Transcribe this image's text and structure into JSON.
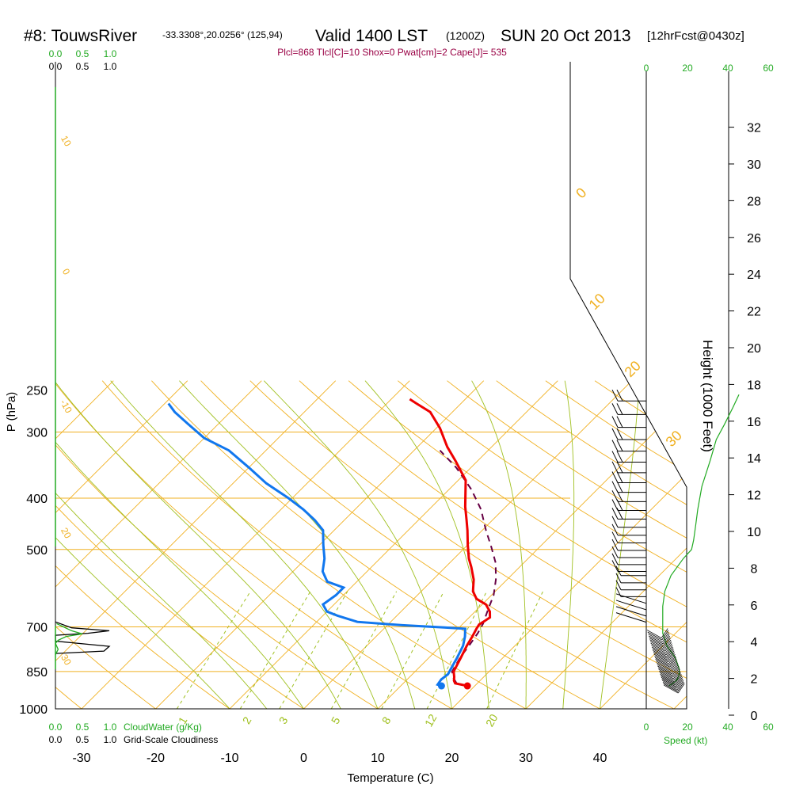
{
  "header": {
    "station": "#8: TouwsRiver",
    "coords": "-33.3308°,20.0256° (125,94)",
    "valid": "Valid 1400 LST",
    "zulu": "(1200Z)",
    "date": "SUN 20 Oct 2013",
    "forecast": "[12hrFcst@0430z]",
    "params": "Plcl=868 Tlcl[C]=10 Shox=0 Pwat[cm]=2 Cape[J]= 535"
  },
  "labels": {
    "xlabel": "Temperature (C)",
    "ylabel": "P (hPa)",
    "height_label": "Height (1000 Feet)",
    "cloudwater_label": "CloudWater (g/Kg)",
    "cloudiness_label": "Grid-Scale Cloudiness",
    "speed_label": "Speed (kt)"
  },
  "colors": {
    "isobar": "#f0b020",
    "dry_adiabat": "#f0b020",
    "moist_adiabat": "#a0c020",
    "mixing_ratio": "#a0c020",
    "temperature": "#ee0000",
    "dewpoint": "#1177ee",
    "parcel": "#660044",
    "cloudwater": "#22aa22",
    "cloudiness": "#000000",
    "wind_speed": "#22aa22"
  },
  "chart_data": {
    "type": "line",
    "title": "Skew-T log-P sounding",
    "xlabel": "Temperature (C)",
    "ylabel": "P (hPa)",
    "x_ticks": [
      -30,
      -20,
      -10,
      0,
      10,
      20,
      30,
      40
    ],
    "pressure_ticks": [
      250,
      300,
      400,
      500,
      700,
      850,
      1000
    ],
    "height_ticks_kft": [
      0,
      2,
      4,
      6,
      8,
      10,
      12,
      14,
      16,
      18,
      20,
      22,
      24,
      26,
      28,
      30,
      32
    ],
    "speed_ticks_top": [
      "0",
      "20",
      "40",
      "60"
    ],
    "speed_ticks_bottom": [
      "0",
      "20",
      "40",
      "60"
    ],
    "cloudwater_ticks": [
      "0.0",
      "0.5",
      "1.0"
    ],
    "cloudiness_ticks": [
      "0.0",
      "0.5",
      "1.0"
    ],
    "dry_adiabat_labels": [
      "-10",
      "0",
      "10",
      "20",
      "30"
    ],
    "isotherm_labels": [
      "-10",
      "0",
      "10",
      "20",
      "30"
    ],
    "mixing_ratio_labels": [
      "1",
      "2",
      "3",
      "5",
      "8",
      "12",
      "20"
    ],
    "series": [
      {
        "name": "Temperature",
        "points": [
          [
            19.0,
            905
          ],
          [
            18.0,
            900
          ],
          [
            17.0,
            895
          ],
          [
            16.5,
            885
          ],
          [
            16.0,
            870
          ],
          [
            15.2,
            850
          ],
          [
            14.3,
            800
          ],
          [
            13.5,
            760
          ],
          [
            13.0,
            730
          ],
          [
            12.5,
            705
          ],
          [
            12.3,
            693
          ],
          [
            12.5,
            685
          ],
          [
            12.8,
            672
          ],
          [
            12.0,
            655
          ],
          [
            10.5,
            635
          ],
          [
            8.5,
            620
          ],
          [
            7.0,
            600
          ],
          [
            5.5,
            570
          ],
          [
            3.5,
            540
          ],
          [
            2.0,
            520
          ],
          [
            0.0,
            490
          ],
          [
            -2.0,
            460
          ],
          [
            -3.5,
            440
          ],
          [
            -5.5,
            415
          ],
          [
            -9.0,
            370
          ],
          [
            -13.0,
            340
          ],
          [
            -16.0,
            320
          ],
          [
            -19.5,
            295
          ],
          [
            -23.0,
            275
          ],
          [
            -26.0,
            265
          ],
          [
            -27.5,
            260
          ]
        ]
      },
      {
        "name": "Dewpoint",
        "points": [
          [
            15.5,
            905
          ],
          [
            14.8,
            900
          ],
          [
            14.6,
            880
          ],
          [
            14.8,
            860
          ],
          [
            14.3,
            830
          ],
          [
            13.8,
            800
          ],
          [
            13.0,
            760
          ],
          [
            12.0,
            730
          ],
          [
            11.0,
            706
          ],
          [
            8.0,
            702
          ],
          [
            2.0,
            695
          ],
          [
            -4.5,
            685
          ],
          [
            -8.0,
            667
          ],
          [
            -10.0,
            655
          ],
          [
            -11.5,
            635
          ],
          [
            -11.0,
            610
          ],
          [
            -11.0,
            590
          ],
          [
            -14.0,
            575
          ],
          [
            -16.0,
            550
          ],
          [
            -17.5,
            520
          ],
          [
            -19.5,
            490
          ],
          [
            -21.5,
            460
          ],
          [
            -24.0,
            440
          ],
          [
            -27.0,
            420
          ],
          [
            -30.5,
            400
          ],
          [
            -35.5,
            375
          ],
          [
            -40.0,
            350
          ],
          [
            -45.0,
            325
          ],
          [
            -50.0,
            308
          ],
          [
            -54.0,
            290
          ],
          [
            -57.5,
            275
          ],
          [
            -59.5,
            265
          ]
        ]
      },
      {
        "name": "Parcel",
        "points": [
          [
            17.2,
            895
          ],
          [
            15.8,
            870
          ],
          [
            15.0,
            850
          ],
          [
            14.2,
            800
          ],
          [
            13.8,
            760
          ],
          [
            13.3,
            720
          ],
          [
            12.7,
            690
          ],
          [
            11.5,
            650
          ],
          [
            10.3,
            610
          ],
          [
            8.5,
            570
          ],
          [
            6.2,
            530
          ],
          [
            3.5,
            495
          ],
          [
            0.5,
            460
          ],
          [
            -3.0,
            420
          ],
          [
            -7.0,
            385
          ],
          [
            -12.0,
            350
          ],
          [
            -16.5,
            325
          ]
        ]
      }
    ],
    "wind_speed_profile_kt": [
      [
        11,
        905
      ],
      [
        13,
        895
      ],
      [
        15,
        880
      ],
      [
        16,
        860
      ],
      [
        16,
        840
      ],
      [
        14,
        800
      ],
      [
        10,
        760
      ],
      [
        8,
        720
      ],
      [
        8,
        690
      ],
      [
        8,
        640
      ],
      [
        9,
        600
      ],
      [
        12,
        560
      ],
      [
        18,
        520
      ],
      [
        22,
        500
      ],
      [
        23,
        480
      ],
      [
        24,
        450
      ],
      [
        25,
        420
      ],
      [
        27,
        380
      ],
      [
        31,
        340
      ],
      [
        34,
        310
      ],
      [
        38,
        290
      ],
      [
        42,
        270
      ],
      [
        45,
        255
      ]
    ],
    "cloudwater_profile": [
      [
        0.02,
        690
      ],
      [
        0.15,
        700
      ],
      [
        0.3,
        712
      ],
      [
        0.5,
        722
      ],
      [
        0.2,
        730
      ],
      [
        0.05,
        742
      ],
      [
        0.0,
        752
      ],
      [
        0.05,
        772
      ],
      [
        0.0,
        790
      ]
    ],
    "cloudiness_profile": [
      [
        0.0,
        685
      ],
      [
        0.3,
        703
      ],
      [
        1.0,
        712
      ],
      [
        0.6,
        720
      ],
      [
        0.0,
        726
      ],
      [
        0.0,
        745
      ],
      [
        1.0,
        762
      ],
      [
        0.9,
        778
      ],
      [
        0.0,
        786
      ]
    ]
  }
}
